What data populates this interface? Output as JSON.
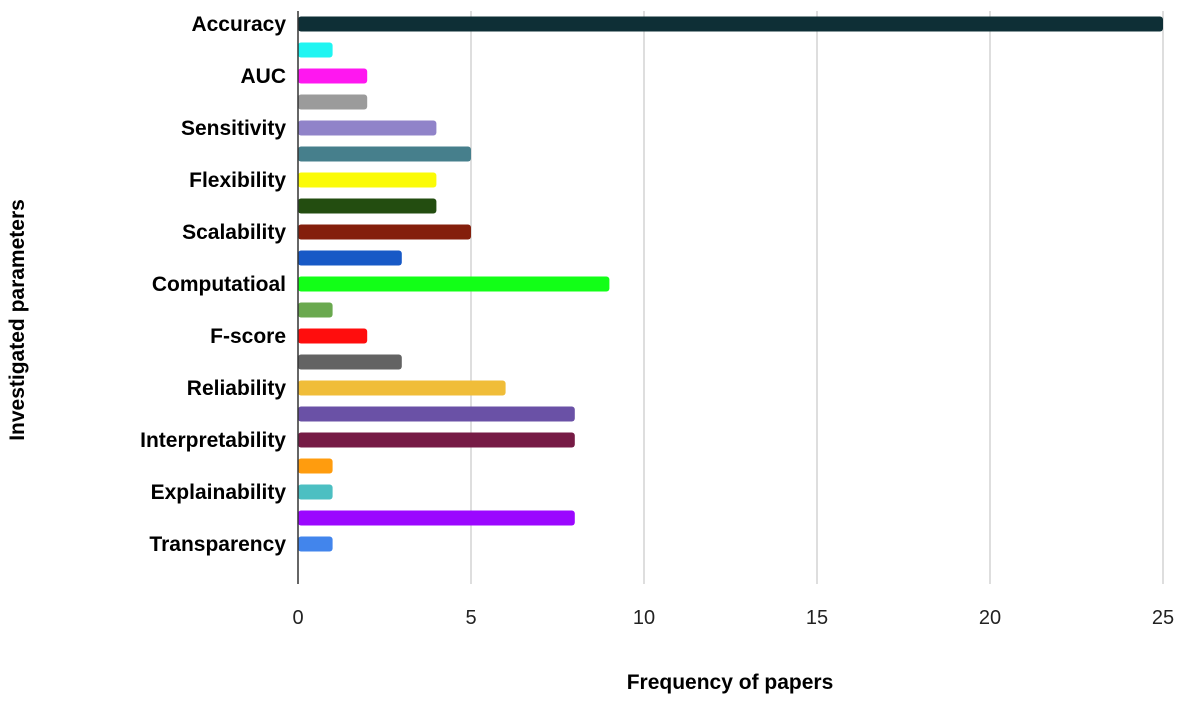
{
  "chart_data": {
    "type": "bar",
    "orientation": "horizontal",
    "xlabel": "Frequency of papers",
    "ylabel": "Investigated parameters",
    "xlim": [
      0,
      25
    ],
    "xticks": [
      0,
      5,
      10,
      15,
      20,
      25
    ],
    "grid": "vertical",
    "legend": "none",
    "category_labels": [
      "Accuracy",
      "AUC",
      "Sensitivity",
      "Flexibility",
      "Scalability",
      "Computatioal",
      "F-score",
      "Reliability",
      "Interpretability",
      "Explainability",
      "Transparency"
    ],
    "bars": [
      {
        "label": "Accuracy",
        "value": 25,
        "color": "#0e2f36"
      },
      {
        "label": "",
        "value": 1,
        "color": "#1ff5f2"
      },
      {
        "label": "AUC",
        "value": 2,
        "color": "#ff17f0"
      },
      {
        "label": "",
        "value": 2,
        "color": "#9b9b9b"
      },
      {
        "label": "Sensitivity",
        "value": 4,
        "color": "#9083c9"
      },
      {
        "label": "",
        "value": 5,
        "color": "#467f8c"
      },
      {
        "label": "Flexibility",
        "value": 4,
        "color": "#fbfb07"
      },
      {
        "label": "",
        "value": 4,
        "color": "#234d10"
      },
      {
        "label": "Scalability",
        "value": 5,
        "color": "#841f0c"
      },
      {
        "label": "",
        "value": 3,
        "color": "#1759c6"
      },
      {
        "label": "Computatioal",
        "value": 9,
        "color": "#12ff17"
      },
      {
        "label": "",
        "value": 1,
        "color": "#6aa94f"
      },
      {
        "label": "F-score",
        "value": 2,
        "color": "#ff0d0d"
      },
      {
        "label": "",
        "value": 3,
        "color": "#636363"
      },
      {
        "label": "Reliability",
        "value": 6,
        "color": "#f0bd39"
      },
      {
        "label": "",
        "value": 8,
        "color": "#6a51a6"
      },
      {
        "label": "Interpretability",
        "value": 8,
        "color": "#761b45"
      },
      {
        "label": "",
        "value": 1,
        "color": "#ff9c0e"
      },
      {
        "label": "Explainability",
        "value": 1,
        "color": "#4cbfc2"
      },
      {
        "label": "",
        "value": 8,
        "color": "#9b07ff"
      },
      {
        "label": "Transparency",
        "value": 1,
        "color": "#4285ec"
      }
    ]
  }
}
